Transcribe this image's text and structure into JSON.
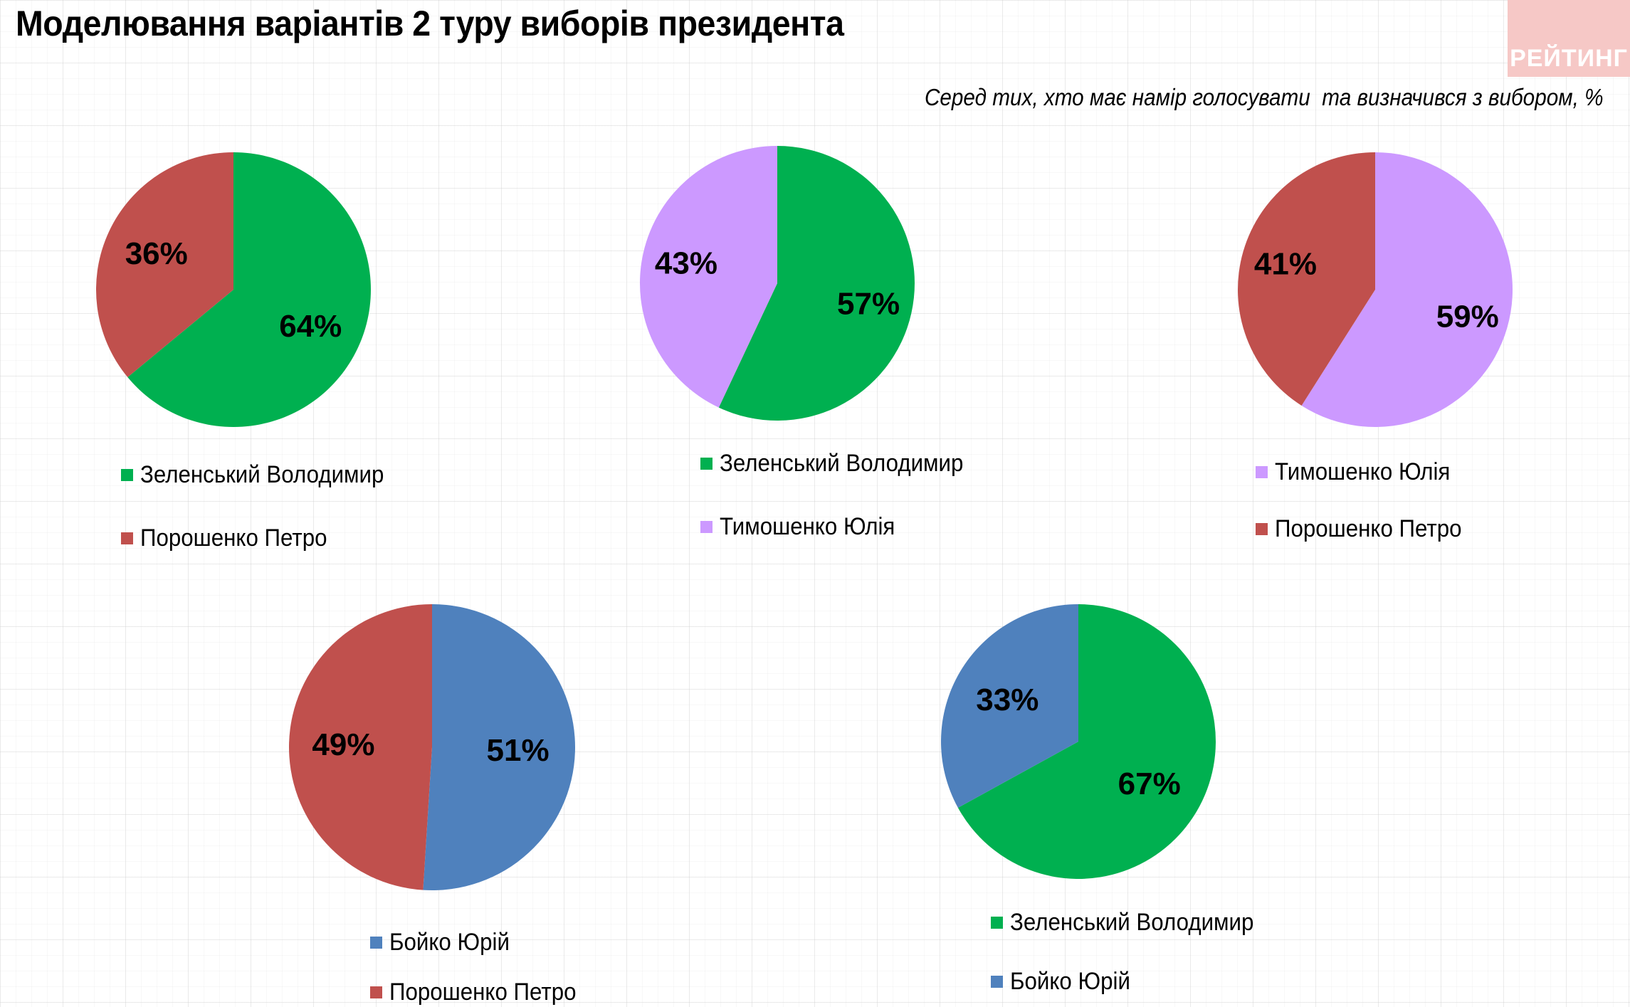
{
  "title": "Моделювання варіантів 2 туру виборів президента",
  "subtitle": "Серед тих, хто має намір голосувати  та визначився з вибором, %",
  "logo_text": "РЕЙТИНГ",
  "colors": {
    "zelensky": "#00b050",
    "poroshenko": "#c0504d",
    "tymoshenko": "#cc99ff",
    "boyko": "#4f81bd"
  },
  "chart_data": [
    {
      "type": "pie",
      "slices": [
        {
          "label": "Зеленський Володимир",
          "value": 64,
          "display": "64%",
          "color": "#00b050"
        },
        {
          "label": "Порошенко Петро",
          "value": 36,
          "display": "36%",
          "color": "#c0504d"
        }
      ],
      "legend": [
        "Зеленський Володимир",
        "Порошенко Петро"
      ],
      "legend_position": "bottom"
    },
    {
      "type": "pie",
      "slices": [
        {
          "label": "Зеленський Володимир",
          "value": 57,
          "display": "57%",
          "color": "#00b050"
        },
        {
          "label": "Тимошенко Юлія",
          "value": 43,
          "display": "43%",
          "color": "#cc99ff"
        }
      ],
      "legend": [
        "Зеленський Володимир",
        "Тимошенко Юлія"
      ],
      "legend_position": "bottom"
    },
    {
      "type": "pie",
      "slices": [
        {
          "label": "Тимошенко Юлія",
          "value": 59,
          "display": "59%",
          "color": "#cc99ff"
        },
        {
          "label": "Порошенко Петро",
          "value": 41,
          "display": "41%",
          "color": "#c0504d"
        }
      ],
      "legend": [
        "Тимошенко Юлія",
        "Порошенко Петро"
      ],
      "legend_position": "bottom"
    },
    {
      "type": "pie",
      "slices": [
        {
          "label": "Бойко Юрій",
          "value": 51,
          "display": "51%",
          "color": "#4f81bd"
        },
        {
          "label": "Порошенко Петро",
          "value": 49,
          "display": "49%",
          "color": "#c0504d"
        }
      ],
      "legend": [
        "Бойко Юрій",
        "Порошенко Петро"
      ],
      "legend_position": "bottom"
    },
    {
      "type": "pie",
      "slices": [
        {
          "label": "Зеленський Володимир",
          "value": 67,
          "display": "67%",
          "color": "#00b050"
        },
        {
          "label": "Бойко Юрій",
          "value": 33,
          "display": "33%",
          "color": "#4f81bd"
        }
      ],
      "legend": [
        "Зеленський Володимир",
        "Бойко Юрій"
      ],
      "legend_position": "bottom"
    }
  ]
}
